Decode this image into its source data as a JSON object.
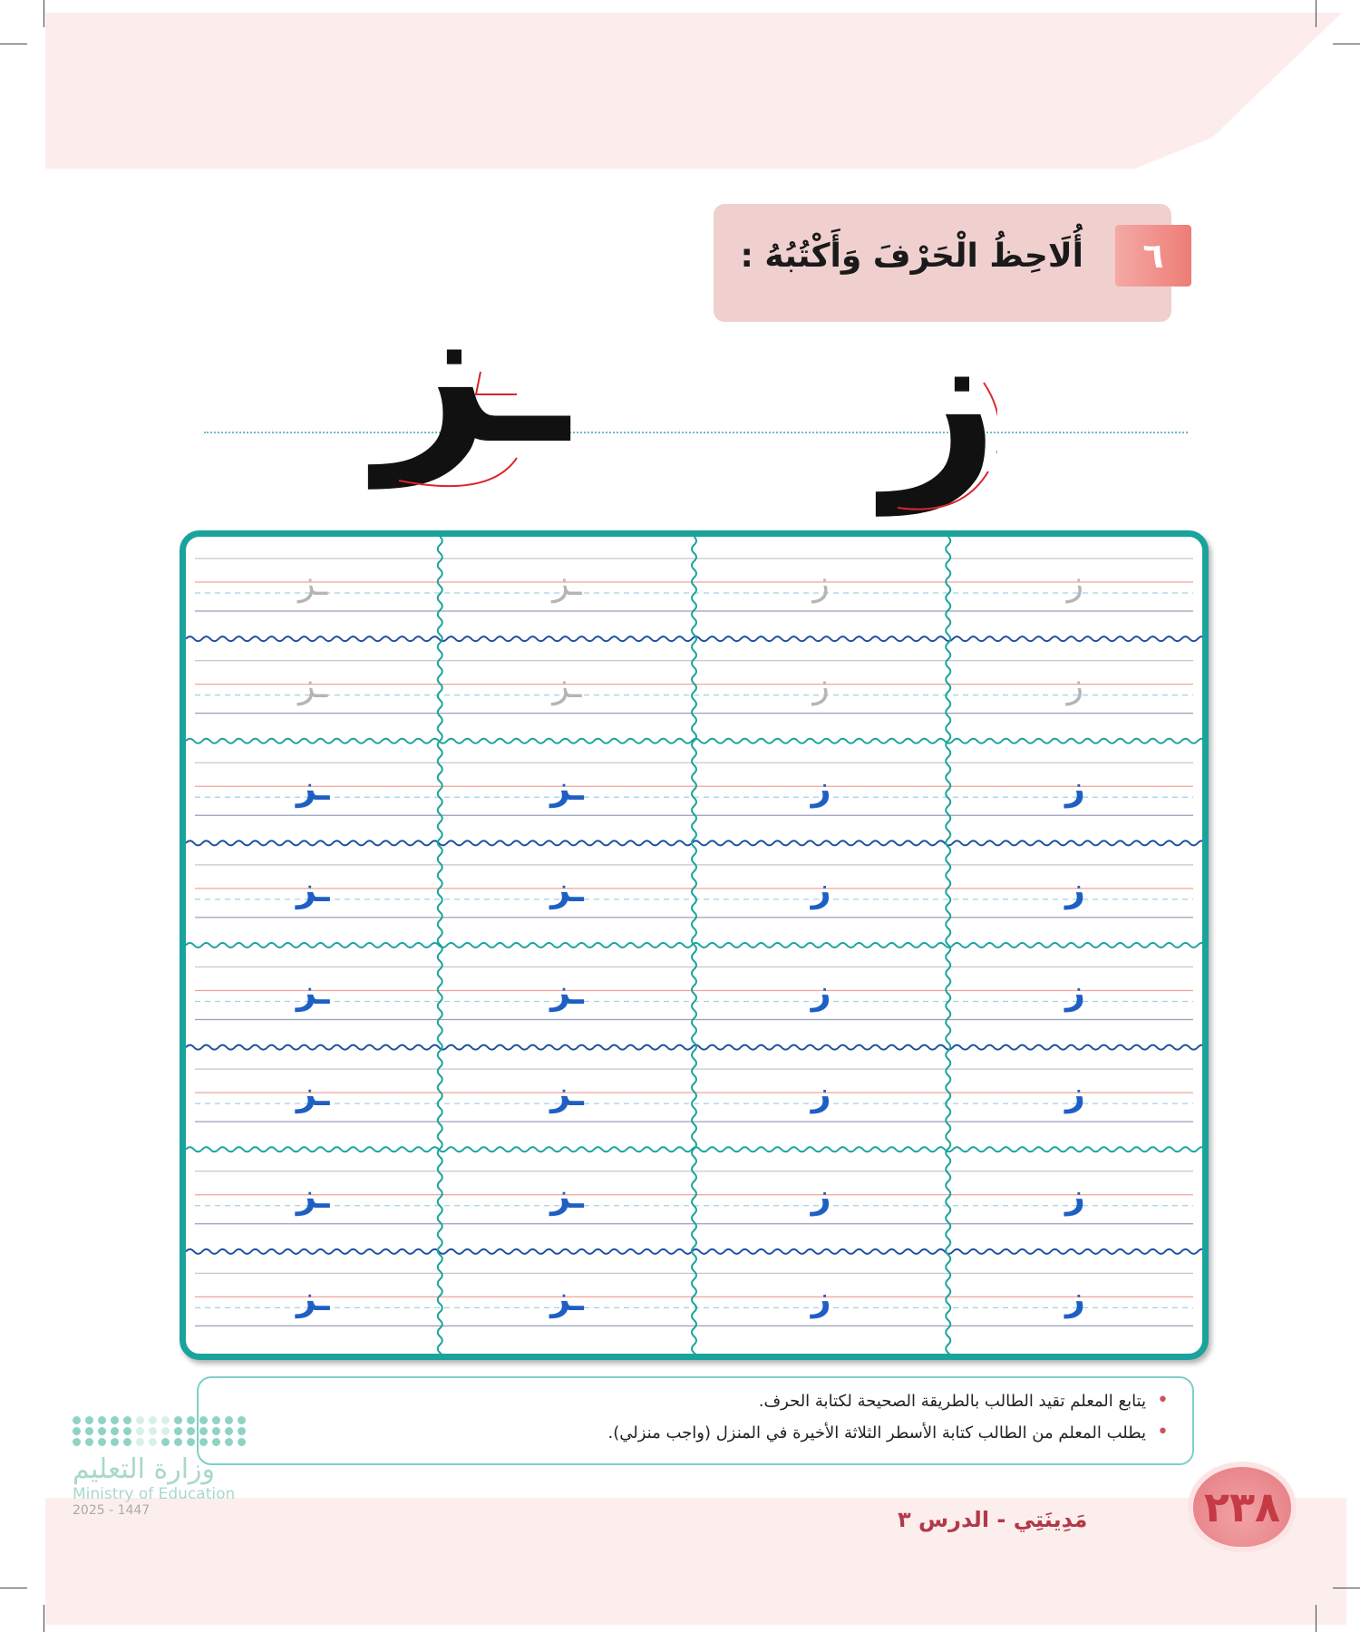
{
  "exercise": {
    "number": "٦",
    "instruction": "أُلَاحِظُ الْحَرْفَ وَأَكْتُبُهُ :"
  },
  "model_letters": {
    "isolated": "ز",
    "connected": "ـز"
  },
  "practice_grid": {
    "columns": [
      "ـز",
      "ـز",
      "ز",
      "ز"
    ],
    "rows": 8,
    "traced_rows": 2,
    "colors": {
      "border": "#1aa39c",
      "trace": "#b5b5b5",
      "sample": "#1e5fc4"
    }
  },
  "notes": [
    "يتابع المعلم تقيد الطالب بالطريقة الصحيحة لكتابة الحرف.",
    "يطلب المعلم من الطالب كتابة الأسطر الثلاثة الأخيرة في المنزل (واجب منزلي)."
  ],
  "footer": {
    "page_number": "٢٣٨",
    "lesson": "مَدِينَتِي - الدرس ٣"
  },
  "logo": {
    "arabic": "وزارة التعليم",
    "english": "Ministry of Education",
    "year": "2025 - 1447"
  }
}
